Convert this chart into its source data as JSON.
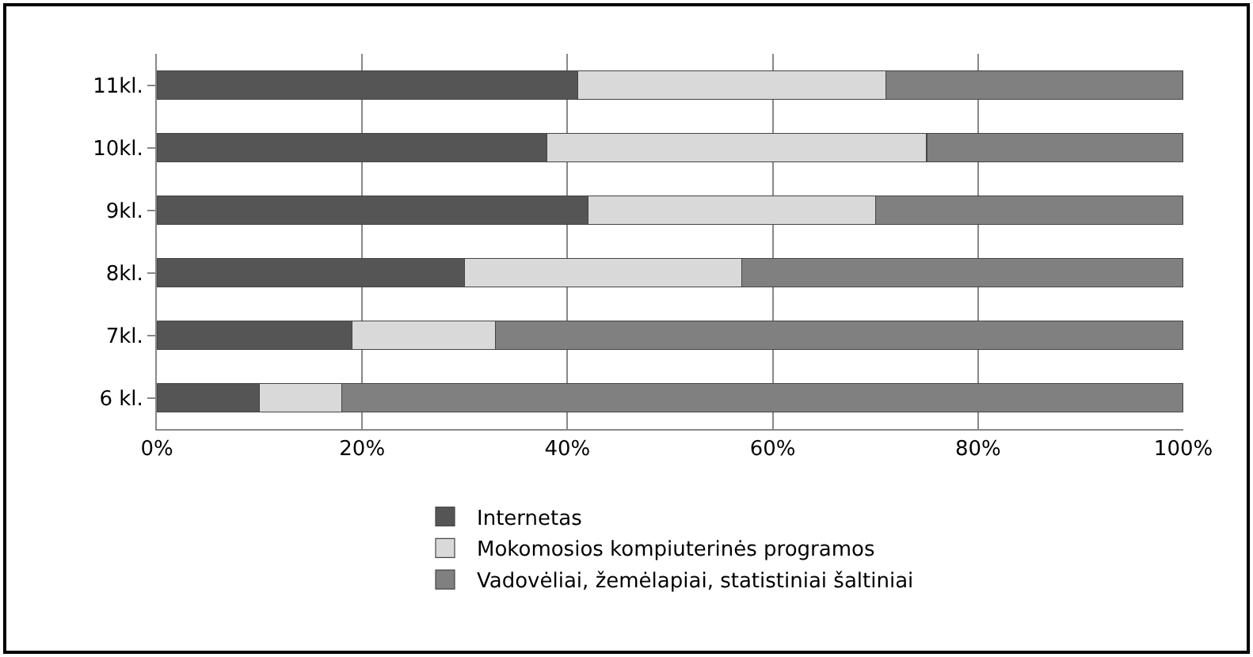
{
  "chart_data": {
    "type": "bar",
    "orientation": "horizontal",
    "stacked": true,
    "categories": [
      "11kl.",
      "10kl.",
      "9kl.",
      "8kl.",
      "7kl.",
      "6 kl."
    ],
    "series": [
      {
        "name": "Internetas",
        "color": "#555555",
        "values": [
          41,
          38,
          42,
          30,
          19,
          10
        ]
      },
      {
        "name": "Mokomosios kompiuterinės programos",
        "color": "#d9d9d9",
        "values": [
          30,
          37,
          28,
          27,
          14,
          8
        ]
      },
      {
        "name": "Vadovėliai, žemėlapiai, statistiniai šaltiniai",
        "color": "#808080",
        "values": [
          29,
          25,
          30,
          43,
          67,
          82
        ]
      }
    ],
    "xlim": [
      0,
      100
    ],
    "xticks": [
      {
        "value": 0,
        "label": "0%"
      },
      {
        "value": 20,
        "label": "20%"
      },
      {
        "value": 40,
        "label": "40%"
      },
      {
        "value": 60,
        "label": "60%"
      },
      {
        "value": 80,
        "label": "80%"
      },
      {
        "value": 100,
        "label": "100%"
      }
    ],
    "grid": "x",
    "legend": "bottom"
  }
}
